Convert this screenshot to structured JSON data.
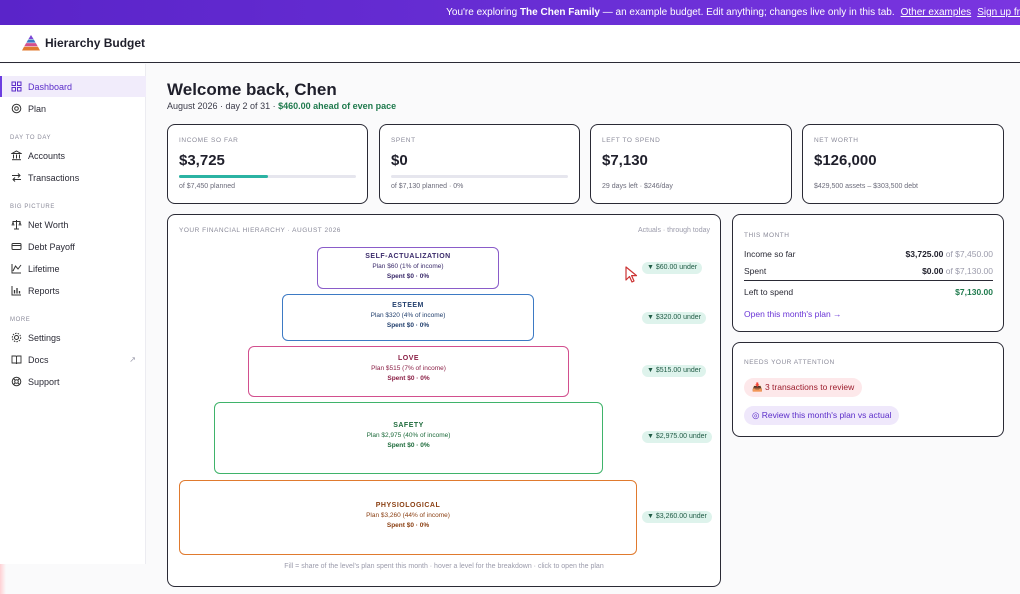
{
  "banner": {
    "prefix": "You're exploring ",
    "family": "The Chen Family",
    "suffix": " — an example budget. Edit anything; changes live only in this tab.",
    "link1": "Other examples",
    "link2": "Sign up fr"
  },
  "app": {
    "title": "Hierarchy Budget"
  },
  "sidebar": {
    "items": [
      {
        "label": "Dashboard",
        "icon": "grid-icon"
      },
      {
        "label": "Plan",
        "icon": "target-icon"
      },
      {
        "label": "Accounts",
        "icon": "bank-icon"
      },
      {
        "label": "Transactions",
        "icon": "arrows-icon"
      },
      {
        "label": "Net Worth",
        "icon": "scale-icon"
      },
      {
        "label": "Debt Payoff",
        "icon": "card-icon"
      },
      {
        "label": "Lifetime",
        "icon": "chart-icon"
      },
      {
        "label": "Reports",
        "icon": "bars-icon"
      },
      {
        "label": "Settings",
        "icon": "gear-icon"
      },
      {
        "label": "Docs",
        "icon": "book-icon"
      },
      {
        "label": "Support",
        "icon": "lifebuoy-icon"
      }
    ],
    "sections": [
      "DAY TO DAY",
      "BIG PICTURE",
      "MORE"
    ]
  },
  "welcome": {
    "title": "Welcome back, Chen",
    "subline": "August 2026 · day 2 of 31 · ",
    "ahead": "$460.00 ahead of even pace"
  },
  "cards": [
    {
      "label": "INCOME SO FAR",
      "value": "$3,725",
      "sub": "of $7,450 planned",
      "progress": 0.5
    },
    {
      "label": "SPENT",
      "value": "$0",
      "sub": "of $7,130 planned · 0%",
      "progress": 0
    },
    {
      "label": "LEFT TO SPEND",
      "value": "$7,130",
      "sub": "29 days left · $246/day"
    },
    {
      "label": "NET WORTH",
      "value": "$126,000",
      "sub": "$429,500 assets – $303,500 debt"
    }
  ],
  "pyramid": {
    "title": "YOUR FINANCIAL HIERARCHY · AUGUST 2026",
    "note": "Actuals · through today",
    "footer": "Fill = share of the level's plan spent this month · hover a level for the breakdown · click to open the plan",
    "levels": [
      {
        "name": "SELF-ACTUALIZATION",
        "plan": "Plan $60 (1% of income)",
        "spent": "Spent $0 · 0%",
        "under": "▼ $60.00 under",
        "color": "#8a5cc9",
        "text": "#3a2a6a"
      },
      {
        "name": "ESTEEM",
        "plan": "Plan $320 (4% of income)",
        "spent": "Spent $0 · 0%",
        "under": "▼ $320.00 under",
        "color": "#3d7ac4",
        "text": "#23406e"
      },
      {
        "name": "LOVE",
        "plan": "Plan $515 (7% of income)",
        "spent": "Spent $0 · 0%",
        "under": "▼ $515.00 under",
        "color": "#d24f8e",
        "text": "#8a1f45"
      },
      {
        "name": "SAFETY",
        "plan": "Plan $2,975 (40% of income)",
        "spent": "Spent $0 · 0%",
        "under": "▼ $2,975.00 under",
        "color": "#3fb36a",
        "text": "#1c6a3a"
      },
      {
        "name": "PHYSIOLOGICAL",
        "plan": "Plan $3,260 (44% of income)",
        "spent": "Spent $0 · 0%",
        "under": "▼ $3,260.00 under",
        "color": "#e07a2e",
        "text": "#8a3f12"
      }
    ]
  },
  "this_month": {
    "label": "THIS MONTH",
    "rows": [
      {
        "k": "Income so far",
        "v": "$3,725.00",
        "of": " of $7,450.00"
      },
      {
        "k": "Spent",
        "v": "$0.00",
        "of": " of $7,130.00"
      },
      {
        "k": "Left to spend",
        "v": "$7,130.00",
        "of": ""
      }
    ],
    "link": "Open this month's plan →"
  },
  "attention": {
    "label": "NEEDS YOUR ATTENTION",
    "review": "📥 3 transactions to review",
    "plan": "◎ Review this month's plan vs actual"
  }
}
